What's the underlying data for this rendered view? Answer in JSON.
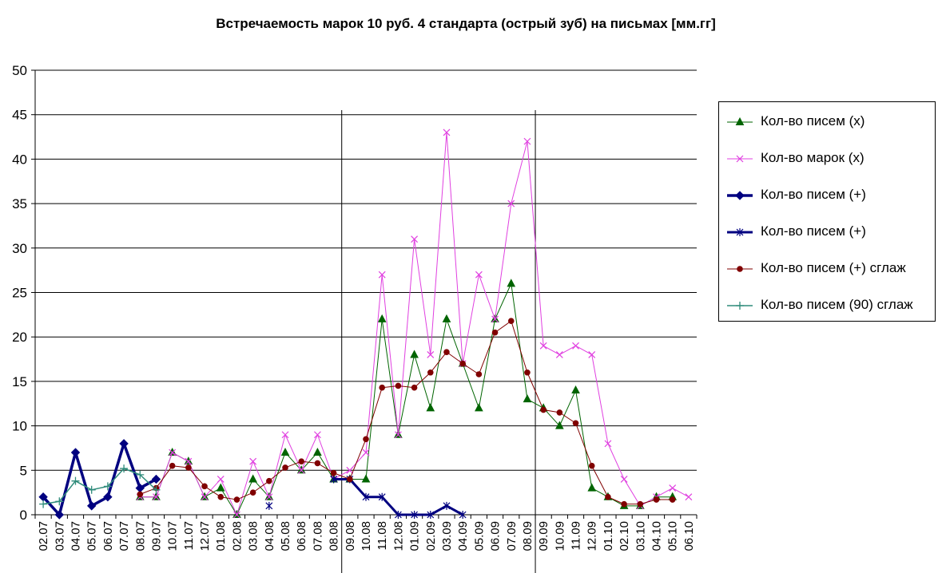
{
  "chart_data": {
    "type": "line",
    "title": "Встречаемость марок 10 руб. 4 стандарта (острый зуб) на письмах [мм.гг]",
    "xlabel": "",
    "ylabel": "",
    "ylim": [
      0,
      50
    ],
    "yticks": [
      "0",
      "5",
      "10",
      "15",
      "20",
      "25",
      "30",
      "35",
      "40",
      "45",
      "50"
    ],
    "grid": "horizontal",
    "legend_position": "right",
    "categories": [
      "02.07",
      "03.07",
      "04.07",
      "05.07",
      "06.07",
      "07.07",
      "08.07",
      "09.07",
      "10.07",
      "11.07",
      "12.07",
      "01.08",
      "02.08",
      "03.08",
      "04.08",
      "05.08",
      "06.08",
      "07.08",
      "08.08",
      "09.08",
      "10.08",
      "11.08",
      "12.08",
      "01.09",
      "02.09",
      "03.09",
      "04.09",
      "05.09",
      "06.09",
      "07.09",
      "08.09",
      "09.09",
      "10.09",
      "11.09",
      "12.09",
      "01.10",
      "02.10",
      "03.10",
      "04.10",
      "05.10",
      "06.10"
    ],
    "tick_labels": [
      "02.07",
      "03.07",
      "04.07",
      "05.07",
      "06.07",
      "07.07",
      "08.07",
      "09.07",
      "10.07",
      "11.07",
      "12.07",
      "01.08",
      "02.08",
      "03.08",
      "04.08",
      "05.08",
      "06.08",
      "07.08",
      "08.08",
      "09.08",
      "10.08",
      "11.08",
      "12.08",
      "01.09",
      "02.09",
      "03.09",
      "04.09",
      "05.09",
      "06.09",
      "07.09",
      "08.09",
      "09.09",
      "10.09",
      "11.09",
      "12.09",
      "01.10",
      "02.10",
      "03.10",
      "04.10",
      "05.10",
      "06.10"
    ],
    "vertical_lines": [
      18.5,
      30.5
    ],
    "series": [
      {
        "name": "Кол-во писем (x)",
        "color": "#006400",
        "marker": "triangle",
        "width": 1,
        "values": [
          null,
          null,
          null,
          null,
          null,
          null,
          2,
          2,
          7,
          6,
          2,
          3,
          0,
          4,
          2,
          7,
          5,
          7,
          4,
          4,
          4,
          22,
          9,
          18,
          12,
          22,
          17,
          12,
          22,
          26,
          13,
          12,
          10,
          14,
          3,
          2,
          1,
          1,
          2,
          2,
          null
        ]
      },
      {
        "name": "Кол-во марок  (x)",
        "color": "#E040E0",
        "marker": "x",
        "width": 1,
        "values": [
          null,
          null,
          null,
          null,
          null,
          null,
          2,
          2,
          7,
          6,
          2,
          4,
          0,
          6,
          2,
          9,
          5,
          9,
          4,
          5,
          7,
          27,
          9,
          31,
          18,
          43,
          17,
          27,
          22,
          35,
          42,
          19,
          18,
          19,
          18,
          8,
          4,
          1,
          2,
          3,
          2
        ]
      },
      {
        "name": "Кол-во писем (+)",
        "color": "#000080",
        "marker": "diamond",
        "width": 3.5,
        "values": [
          2,
          0,
          7,
          1,
          2,
          8,
          3,
          4,
          null,
          null,
          null,
          null,
          null,
          null,
          null,
          null,
          null,
          null,
          null,
          null,
          null,
          null,
          null,
          null,
          null,
          null,
          null,
          null,
          null,
          null,
          null,
          null,
          null,
          null,
          null,
          null,
          null,
          null,
          null,
          null,
          null
        ]
      },
      {
        "name": "Кол-во писем (+)",
        "color": "#000080",
        "marker": "star",
        "width": 3,
        "values": [
          null,
          null,
          null,
          null,
          null,
          null,
          null,
          null,
          null,
          null,
          null,
          null,
          null,
          null,
          1,
          null,
          null,
          null,
          4,
          4,
          2,
          2,
          0,
          0,
          0,
          1,
          0,
          null,
          null,
          null,
          null,
          null,
          null,
          null,
          null,
          null,
          null,
          null,
          null,
          null,
          null
        ]
      },
      {
        "name": "Кол-во писем (+) сглаж",
        "color": "#800000",
        "marker": "circle",
        "width": 1,
        "values": [
          null,
          null,
          null,
          null,
          null,
          null,
          2.3,
          3,
          5.5,
          5.3,
          3.2,
          2,
          1.7,
          2.5,
          3.8,
          5.3,
          6,
          5.8,
          4.7,
          4,
          8.5,
          14.3,
          14.5,
          14.3,
          16,
          18.3,
          17,
          15.8,
          20.5,
          21.8,
          16,
          11.8,
          11.5,
          10.3,
          5.5,
          2,
          1.2,
          1.2,
          1.7,
          1.7,
          null
        ]
      },
      {
        "name": "Кол-во писем (90) сглаж",
        "color": "#2E8B7A",
        "marker": "plus",
        "width": 1.5,
        "values": [
          1.2,
          1.5,
          3.8,
          2.8,
          3.2,
          5.2,
          4.5,
          2.8,
          null,
          null,
          null,
          null,
          null,
          null,
          null,
          null,
          null,
          null,
          null,
          null,
          null,
          null,
          null,
          null,
          null,
          null,
          null,
          null,
          null,
          null,
          null,
          null,
          null,
          null,
          null,
          null,
          null,
          null,
          null,
          null,
          null
        ]
      }
    ]
  }
}
